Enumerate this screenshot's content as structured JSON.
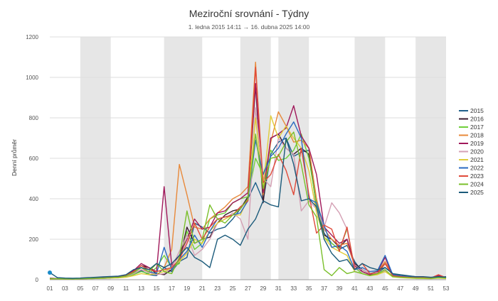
{
  "chart_data": {
    "type": "line",
    "title": "Meziroční srovnání - Týdny",
    "subtitle": "1. ledna 2015 14:11 → 16. dubna 2025 14:00",
    "xlabel": "",
    "ylabel": "Denní průměr",
    "ylim": [
      0,
      1200
    ],
    "yticks": [
      0,
      200,
      400,
      600,
      800,
      1000,
      1200
    ],
    "xlim": [
      1,
      53
    ],
    "xticks": [
      "01",
      "03",
      "05",
      "07",
      "09",
      "11",
      "13",
      "15",
      "17",
      "19",
      "21",
      "23",
      "25",
      "27",
      "29",
      "31",
      "33",
      "35",
      "37",
      "39",
      "41",
      "43",
      "45",
      "47",
      "49",
      "51",
      "53"
    ],
    "shaded_week_bands": [
      [
        5,
        9
      ],
      [
        16,
        21
      ],
      [
        26,
        30
      ],
      [
        31,
        35
      ],
      [
        41,
        45
      ],
      [
        49,
        53
      ]
    ],
    "grid": true,
    "legend_position": "right",
    "series": [
      {
        "name": "2015",
        "color": "#1f5f8b",
        "values": [
          5,
          5,
          4,
          4,
          5,
          6,
          6,
          8,
          10,
          12,
          18,
          30,
          45,
          25,
          20,
          60,
          40,
          90,
          110,
          280,
          260,
          230,
          250,
          260,
          300,
          350,
          400,
          480,
          390,
          620,
          680,
          700,
          610,
          630,
          640,
          380,
          230,
          180,
          150,
          170,
          90,
          40,
          25,
          35,
          60,
          30,
          20,
          18,
          15,
          12,
          10,
          12,
          15
        ]
      },
      {
        "name": "2016",
        "color": "#3a1a2e",
        "values": [
          6,
          5,
          5,
          4,
          5,
          7,
          8,
          9,
          10,
          12,
          20,
          40,
          70,
          60,
          30,
          25,
          50,
          100,
          260,
          180,
          200,
          210,
          280,
          320,
          340,
          350,
          410,
          960,
          380,
          700,
          720,
          650,
          620,
          650,
          620,
          360,
          220,
          200,
          160,
          200,
          80,
          50,
          30,
          40,
          80,
          20,
          15,
          12,
          10,
          10,
          8,
          15,
          12
        ]
      },
      {
        "name": "2017",
        "color": "#6fcf3a",
        "values": [
          4,
          4,
          4,
          3,
          4,
          5,
          6,
          7,
          9,
          10,
          15,
          25,
          40,
          30,
          60,
          120,
          60,
          80,
          240,
          150,
          180,
          300,
          320,
          330,
          380,
          400,
          410,
          600,
          520,
          640,
          590,
          600,
          640,
          720,
          600,
          370,
          210,
          180,
          150,
          250,
          60,
          30,
          20,
          30,
          40,
          15,
          12,
          10,
          8,
          8,
          6,
          10,
          8
        ]
      },
      {
        "name": "2018",
        "color": "#e8893a",
        "values": [
          8,
          6,
          5,
          5,
          6,
          7,
          8,
          10,
          12,
          14,
          20,
          30,
          50,
          40,
          80,
          60,
          150,
          570,
          420,
          260,
          250,
          300,
          330,
          360,
          400,
          420,
          460,
          1075,
          420,
          680,
          830,
          760,
          680,
          690,
          650,
          400,
          250,
          200,
          170,
          180,
          70,
          40,
          25,
          40,
          90,
          25,
          18,
          14,
          12,
          10,
          8,
          12,
          10
        ]
      },
      {
        "name": "2019",
        "color": "#a0185a",
        "values": [
          7,
          6,
          5,
          5,
          6,
          8,
          8,
          10,
          12,
          14,
          22,
          45,
          80,
          60,
          40,
          460,
          70,
          120,
          200,
          300,
          250,
          260,
          330,
          340,
          380,
          400,
          430,
          970,
          430,
          700,
          720,
          750,
          860,
          710,
          650,
          520,
          260,
          220,
          180,
          200,
          70,
          40,
          25,
          40,
          110,
          20,
          15,
          12,
          10,
          10,
          8,
          20,
          10
        ]
      },
      {
        "name": "2020",
        "color": "#d4a0b4",
        "values": [
          5,
          5,
          4,
          4,
          5,
          6,
          7,
          8,
          9,
          11,
          16,
          30,
          50,
          35,
          25,
          30,
          60,
          140,
          220,
          120,
          150,
          200,
          280,
          300,
          330,
          300,
          200,
          850,
          500,
          460,
          700,
          650,
          620,
          340,
          390,
          350,
          260,
          380,
          330,
          250,
          60,
          50,
          30,
          35,
          45,
          18,
          14,
          10,
          9,
          8,
          7,
          10,
          9
        ]
      },
      {
        "name": "2021",
        "color": "#e0cc3a",
        "values": [
          4,
          4,
          3,
          3,
          4,
          5,
          6,
          7,
          8,
          9,
          12,
          20,
          30,
          25,
          30,
          40,
          60,
          90,
          130,
          200,
          180,
          240,
          280,
          300,
          320,
          320,
          400,
          800,
          460,
          810,
          700,
          760,
          700,
          650,
          540,
          330,
          210,
          160,
          140,
          120,
          40,
          30,
          20,
          25,
          40,
          14,
          10,
          8,
          7,
          6,
          5,
          8,
          6
        ]
      },
      {
        "name": "2022",
        "color": "#2a6ac0",
        "values": [
          6,
          5,
          5,
          4,
          5,
          6,
          7,
          8,
          10,
          12,
          18,
          35,
          60,
          40,
          30,
          160,
          50,
          100,
          140,
          220,
          160,
          240,
          300,
          310,
          320,
          330,
          390,
          690,
          520,
          610,
          650,
          720,
          780,
          700,
          400,
          380,
          270,
          160,
          170,
          140,
          50,
          60,
          40,
          45,
          120,
          25,
          18,
          14,
          12,
          10,
          8,
          14,
          10
        ]
      },
      {
        "name": "2023",
        "color": "#e04a3a",
        "values": [
          5,
          5,
          4,
          4,
          5,
          6,
          7,
          8,
          10,
          12,
          20,
          40,
          70,
          50,
          40,
          50,
          60,
          100,
          180,
          280,
          200,
          260,
          300,
          310,
          320,
          360,
          390,
          1050,
          480,
          520,
          620,
          540,
          420,
          650,
          420,
          230,
          270,
          250,
          140,
          260,
          50,
          80,
          30,
          30,
          80,
          20,
          15,
          12,
          10,
          10,
          8,
          25,
          10
        ]
      },
      {
        "name": "2024",
        "color": "#7abf2a",
        "values": [
          5,
          5,
          4,
          4,
          5,
          6,
          7,
          8,
          10,
          12,
          18,
          35,
          60,
          40,
          80,
          40,
          30,
          110,
          340,
          180,
          200,
          370,
          300,
          280,
          320,
          350,
          400,
          720,
          450,
          600,
          610,
          680,
          730,
          570,
          370,
          310,
          50,
          20,
          60,
          30,
          40,
          30,
          20,
          30,
          50,
          15,
          12,
          10,
          8,
          8,
          6,
          10,
          8
        ]
      },
      {
        "name": "2025",
        "color": "#1a5a7a",
        "values": [
          35,
          10,
          8,
          7,
          8,
          10,
          12,
          14,
          16,
          18,
          25,
          50,
          60,
          50,
          80,
          60,
          80,
          120,
          160,
          110,
          90,
          60,
          200,
          220,
          200,
          170,
          250,
          300,
          390,
          370,
          360,
          700,
          570,
          390,
          400,
          360,
          200,
          130,
          90,
          100,
          50,
          80,
          60,
          50,
          60,
          30,
          25,
          20,
          15,
          15,
          12,
          15,
          12
        ]
      }
    ]
  }
}
